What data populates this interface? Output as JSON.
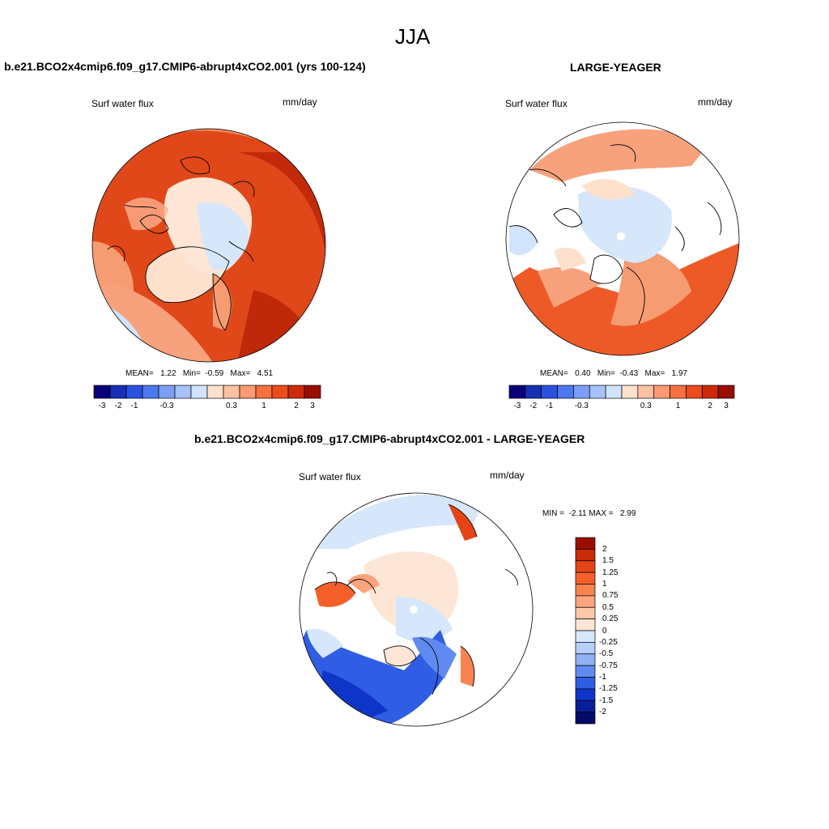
{
  "figure": {
    "title": "JJA"
  },
  "panels": [
    {
      "title": "b.e21.BCO2x4cmip6.f09_g17.CMIP6-abrupt4xCO2.001 (yrs 100-124)",
      "variable": "Surf water flux",
      "units": "mm/day",
      "stats": {
        "mean_label": "MEAN=",
        "mean": "1.22",
        "min_label": "Min=",
        "min": "-0.59",
        "max_label": "Max=",
        "max": "4.51"
      },
      "colorbar_ticks": [
        "-3",
        "-2",
        "-1",
        "-0.3",
        "0.3",
        "1",
        "2",
        "3"
      ]
    },
    {
      "title": "LARGE-YEAGER",
      "variable": "Surf water flux",
      "units": "mm/day",
      "stats": {
        "mean_label": "MEAN=",
        "mean": "0.40",
        "min_label": "Min=",
        "min": "-0.43",
        "max_label": "Max=",
        "max": "1.97"
      },
      "colorbar_ticks": [
        "-3",
        "-2",
        "-1",
        "-0.3",
        "0.3",
        "1",
        "2",
        "3"
      ]
    },
    {
      "title": "b.e21.BCO2x4cmip6.f09_g17.CMIP6-abrupt4xCO2.001 - LARGE-YEAGER",
      "variable": "Surf water flux",
      "units": "mm/day",
      "minmax_text": "MIN =  -2.11 MAX =   2.99",
      "colorbar_labels": [
        "2",
        "1.5",
        "1.25",
        "1",
        "0.75",
        "0.5",
        "0.25",
        "0",
        "-0.25",
        "-0.5",
        "-0.75",
        "-1",
        "-1.25",
        "-1.5",
        "-2"
      ]
    }
  ],
  "colors": {
    "abs_scale": [
      "#08007a",
      "#1730b4",
      "#2a52e0",
      "#4a78f0",
      "#7b9ff5",
      "#a6c2f8",
      "#d1e4fb",
      "#fde1cc",
      "#fcc1a3",
      "#fb9a73",
      "#f7703f",
      "#ec4b1c",
      "#cc2a0a",
      "#9a0e00"
    ],
    "diff_scale": [
      "#9a0e00",
      "#c92a08",
      "#e44416",
      "#f5602a",
      "#f9834f",
      "#fba47d",
      "#fdc8a8",
      "#fde6d6",
      "#d6e6fb",
      "#b5cff8",
      "#8fb2f4",
      "#5f8bf0",
      "#2f5de4",
      "#0f35c8",
      "#0a1e98",
      "#050a6a"
    ]
  }
}
